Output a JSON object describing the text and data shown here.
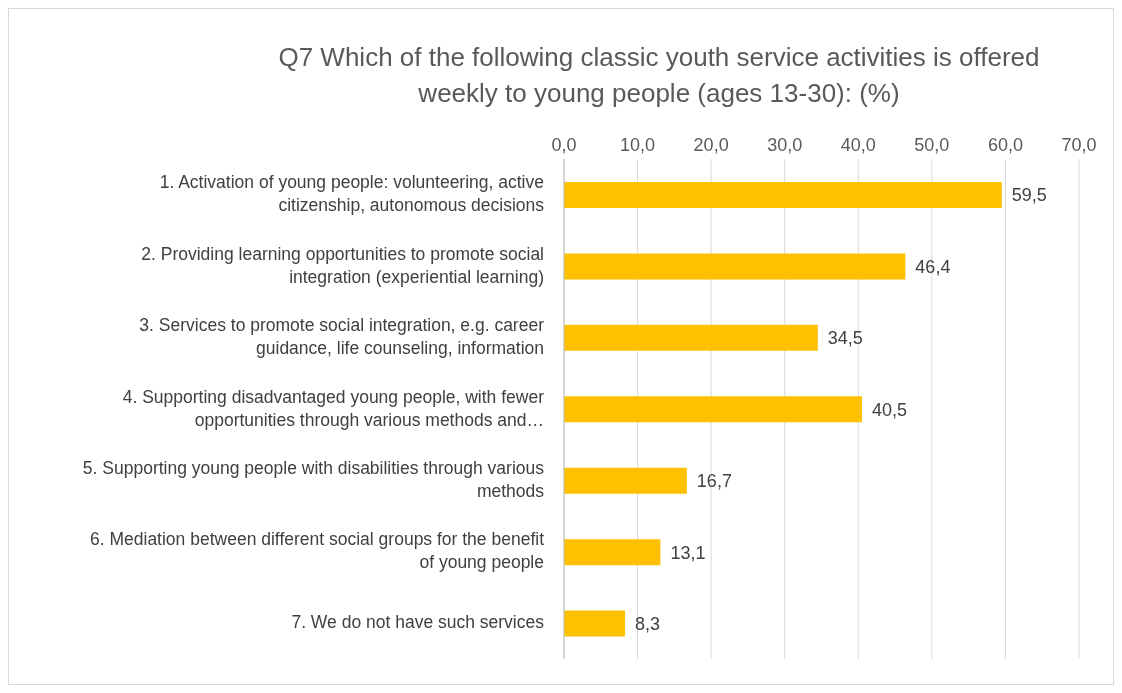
{
  "chart_data": {
    "type": "bar",
    "orientation": "horizontal",
    "title": "Q7 Which of the following classic youth service activities is offered weekly to young people (ages 13-30): (%)",
    "categories": [
      "1. Activation of young people: volunteering, active citizenship, autonomous decisions",
      "2. Providing learning opportunities to promote social integration (experiential learning)",
      "3. Services to promote social integration, e.g. career guidance, life counseling, information",
      "4. Supporting disadvantaged young people, with fewer opportunities through various methods and…",
      "5. Supporting young people with disabilities through various methods",
      "6. Mediation between different social groups for the benefit of young people",
      "7. We do not have such services"
    ],
    "values": [
      59.5,
      46.4,
      34.5,
      40.5,
      16.7,
      13.1,
      8.3
    ],
    "value_labels": [
      "59,5",
      "46,4",
      "34,5",
      "40,5",
      "16,7",
      "13,1",
      "8,3"
    ],
    "color": "#ffc000",
    "xlim": [
      0,
      70
    ],
    "xticks": [
      {
        "value": 0,
        "label": "0,0"
      },
      {
        "value": 10,
        "label": "10,0"
      },
      {
        "value": 20,
        "label": "20,0"
      },
      {
        "value": 30,
        "label": "30,0"
      },
      {
        "value": 40,
        "label": "40,0"
      },
      {
        "value": 50,
        "label": "50,0"
      },
      {
        "value": 60,
        "label": "60,0"
      },
      {
        "value": 70,
        "label": "70,0"
      }
    ],
    "grid": "x",
    "legend": false
  }
}
